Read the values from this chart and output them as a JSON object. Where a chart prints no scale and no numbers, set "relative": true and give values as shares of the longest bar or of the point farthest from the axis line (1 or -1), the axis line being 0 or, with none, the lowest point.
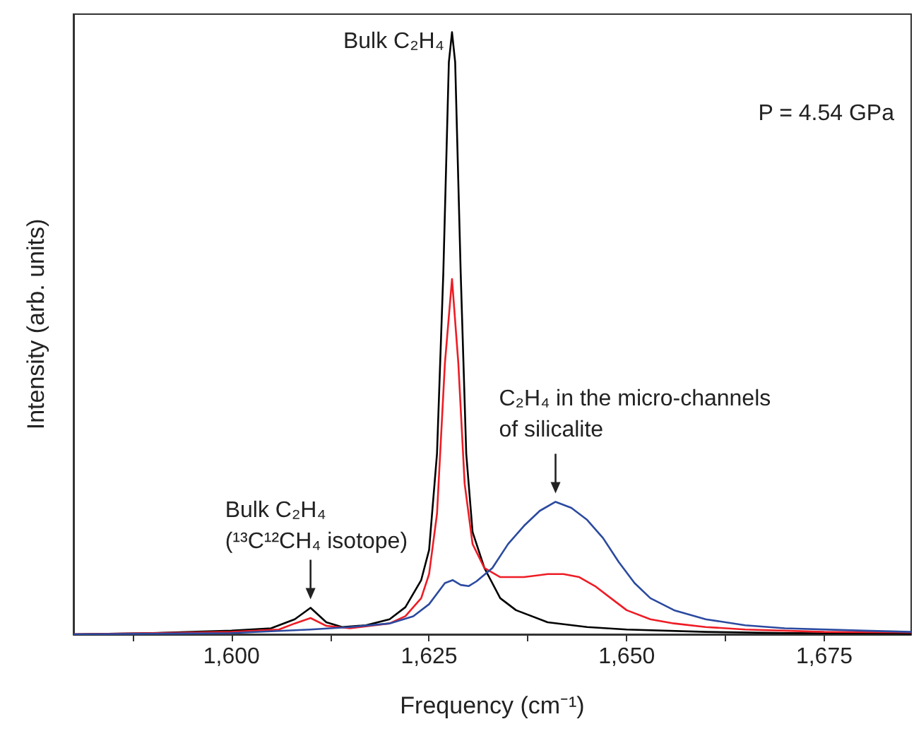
{
  "chart_data": {
    "type": "line",
    "relative": true,
    "xlabel": "Frequency (cm⁻¹)",
    "ylabel": "Intensity (arb. units)",
    "xlim": [
      1580,
      1686
    ],
    "xticks": [
      {
        "value": 1587.5,
        "label": null
      },
      {
        "value": 1600,
        "label": "1,600"
      },
      {
        "value": 1612.5,
        "label": null
      },
      {
        "value": 1625,
        "label": "1,625"
      },
      {
        "value": 1637.5,
        "label": null
      },
      {
        "value": 1650,
        "label": "1,650"
      },
      {
        "value": 1662.5,
        "label": null
      },
      {
        "value": 1675,
        "label": "1,675"
      }
    ],
    "grid": false,
    "marker": "none",
    "line_style": "solid",
    "series": [
      {
        "color": "#000000",
        "x": [
          1580,
          1590,
          1600,
          1605,
          1608,
          1610,
          1612,
          1614,
          1617,
          1620,
          1622,
          1624,
          1625,
          1626,
          1626.8,
          1627.5,
          1627.9,
          1628.3,
          1629,
          1629.7,
          1630.5,
          1632,
          1634,
          1636,
          1640,
          1645,
          1650,
          1660,
          1670,
          1686
        ],
        "values": [
          0,
          0.002,
          0.006,
          0.01,
          0.025,
          0.044,
          0.02,
          0.012,
          0.015,
          0.025,
          0.045,
          0.09,
          0.14,
          0.3,
          0.6,
          0.95,
          1,
          0.95,
          0.6,
          0.3,
          0.17,
          0.11,
          0.06,
          0.04,
          0.02,
          0.012,
          0.008,
          0.004,
          0.002,
          0.001
        ]
      },
      {
        "color": "#ee1c25",
        "x": [
          1580,
          1600,
          1606,
          1608,
          1610,
          1612,
          1615,
          1620,
          1622,
          1624,
          1625,
          1626,
          1627,
          1627.9,
          1628.7,
          1629.5,
          1630.5,
          1632,
          1634,
          1637,
          1640,
          1642,
          1644,
          1646,
          1648,
          1650,
          1653,
          1656,
          1660,
          1665,
          1675,
          1686
        ],
        "values": [
          0,
          0.004,
          0.008,
          0.018,
          0.027,
          0.014,
          0.01,
          0.018,
          0.03,
          0.06,
          0.1,
          0.2,
          0.45,
          0.59,
          0.45,
          0.25,
          0.15,
          0.11,
          0.095,
          0.095,
          0.1,
          0.1,
          0.095,
          0.08,
          0.06,
          0.04,
          0.025,
          0.018,
          0.012,
          0.008,
          0.004,
          0.003
        ]
      },
      {
        "color": "#2b4aa0",
        "x": [
          1580,
          1600,
          1610,
          1615,
          1620,
          1623,
          1625,
          1627,
          1628,
          1629,
          1630,
          1631,
          1633,
          1635,
          1637,
          1639,
          1641,
          1643,
          1645,
          1647,
          1649,
          1651,
          1653,
          1656,
          1660,
          1665,
          1670,
          1680,
          1686
        ],
        "values": [
          0,
          0.002,
          0.008,
          0.012,
          0.018,
          0.03,
          0.05,
          0.085,
          0.09,
          0.082,
          0.08,
          0.088,
          0.11,
          0.15,
          0.18,
          0.205,
          0.22,
          0.21,
          0.19,
          0.16,
          0.12,
          0.085,
          0.06,
          0.04,
          0.025,
          0.015,
          0.01,
          0.006,
          0.004
        ]
      }
    ],
    "annotations": [
      {
        "text": "Bulk C₂H₄",
        "x": 1627.9,
        "y": 1
      },
      {
        "text": "Bulk C₂H₄\n(¹³C¹²CH₄ isotope)",
        "x": 1610,
        "y": 0.044
      },
      {
        "text": "C₂H₄ in the micro-channels\nof silicalite",
        "x": 1641,
        "y": 0.22
      },
      "P = 4.54 GPa"
    ]
  }
}
